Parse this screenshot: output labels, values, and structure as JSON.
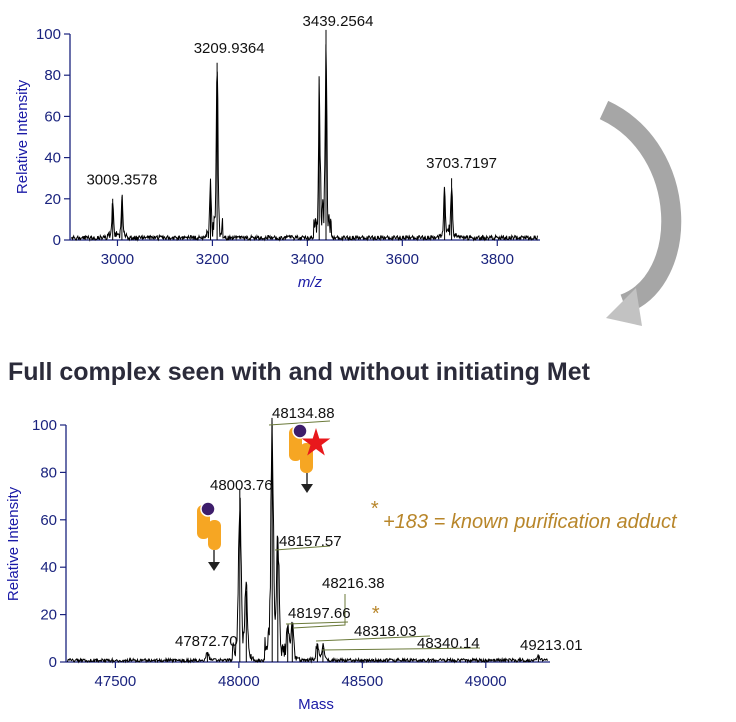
{
  "heading": "Full complex seen with and without initiating Met",
  "note": {
    "star": "*",
    "text": "+183 = known purification adduct",
    "color": "#b8862a"
  },
  "colors": {
    "axis": "#1a237e",
    "axis_label": "#1a1aa6",
    "trace": "#000000",
    "leader_line": "#6b7a3a",
    "protein_orange": "#f6a623",
    "met_circle": "#3d1d6b",
    "star_red": "#e8181c",
    "arrow_gray": "#a6a6a6"
  },
  "icons": [
    "curved-arrow-icon",
    "protein-subunit-icon",
    "protein-with-met-icon",
    "red-star-icon",
    "down-arrow-icon"
  ],
  "chart_data": [
    {
      "type": "line",
      "xlabel": "m/z",
      "ylabel": "Relative Intensity",
      "xlim": [
        2900,
        3890
      ],
      "ylim": [
        0,
        100
      ],
      "xticks": [
        3000,
        3200,
        3400,
        3600,
        3800
      ],
      "yticks": [
        0,
        20,
        40,
        60,
        80,
        100
      ],
      "grid": false,
      "peaks": [
        {
          "x": 2990,
          "y": 20
        },
        {
          "x": 3009.3578,
          "y": 21,
          "label": "3009.3578"
        },
        {
          "x": 3196,
          "y": 29
        },
        {
          "x": 3209.9364,
          "y": 86,
          "label": "3209.9364"
        },
        {
          "x": 3425,
          "y": 78
        },
        {
          "x": 3439.2564,
          "y": 102,
          "label": "3439.2564"
        },
        {
          "x": 3689,
          "y": 25
        },
        {
          "x": 3703.7197,
          "y": 30,
          "label": "3703.7197"
        }
      ]
    },
    {
      "type": "line",
      "xlabel": "Mass",
      "ylabel": "Relative Intensity",
      "xlim": [
        47300,
        49260
      ],
      "ylim": [
        0,
        100
      ],
      "xticks": [
        47500,
        48000,
        48500,
        49000
      ],
      "yticks": [
        0,
        20,
        40,
        60,
        80,
        100
      ],
      "grid": false,
      "peaks": [
        {
          "x": 47872.7,
          "y": 4,
          "label": "47872.70"
        },
        {
          "x": 48003.76,
          "y": 73,
          "label": "48003.76"
        },
        {
          "x": 48030,
          "y": 30
        },
        {
          "x": 48134.88,
          "y": 100,
          "label": "48134.88"
        },
        {
          "x": 48157.57,
          "y": 52,
          "label": "48157.57"
        },
        {
          "x": 48197.66,
          "y": 15,
          "label": "48197.66"
        },
        {
          "x": 48216.38,
          "y": 16,
          "label": "48216.38"
        },
        {
          "x": 48318.03,
          "y": 7,
          "label": "48318.03"
        },
        {
          "x": 48340.14,
          "y": 6,
          "label": "48340.14"
        },
        {
          "x": 49213.01,
          "y": 2,
          "label": "49213.01"
        }
      ]
    }
  ]
}
